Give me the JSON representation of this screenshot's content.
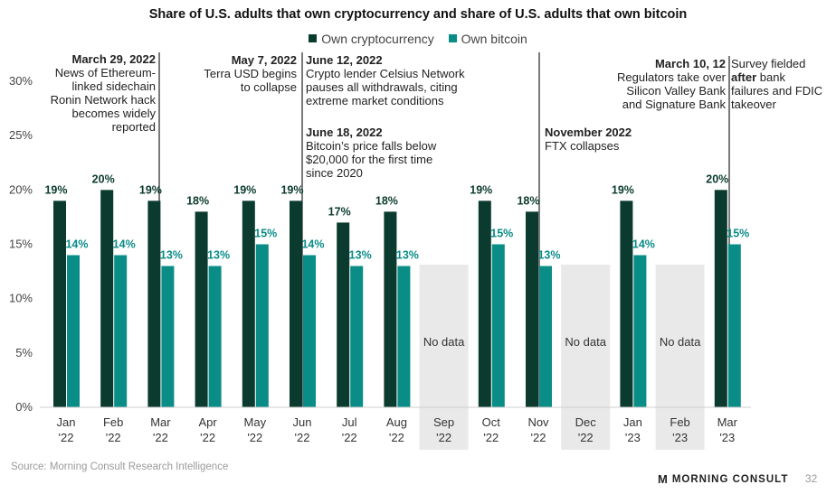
{
  "chart_data": {
    "type": "bar",
    "title": "Share of U.S. adults that own cryptocurrency and share of U.S. adults that own bitcoin",
    "categories": [
      [
        "Jan",
        "'22"
      ],
      [
        "Feb",
        "'22"
      ],
      [
        "Mar",
        "'22"
      ],
      [
        "Apr",
        "'22"
      ],
      [
        "May",
        "'22"
      ],
      [
        "Jun",
        "'22"
      ],
      [
        "Jul",
        "'22"
      ],
      [
        "Aug",
        "'22"
      ],
      [
        "Sep",
        "'22"
      ],
      [
        "Oct",
        "'22"
      ],
      [
        "Nov",
        "'22"
      ],
      [
        "Dec",
        "'22"
      ],
      [
        "Jan",
        "'23"
      ],
      [
        "Feb",
        "'23"
      ],
      [
        "Mar",
        "'23"
      ]
    ],
    "series": [
      {
        "name": "Own cryptocurrency",
        "color": "#0b3b2e",
        "values": [
          19,
          20,
          19,
          18,
          19,
          19,
          17,
          18,
          null,
          19,
          18,
          null,
          19,
          null,
          20
        ],
        "labels": [
          "19%",
          "20%",
          "19%",
          "18%",
          "19%",
          "19%",
          "17%",
          "18%",
          "",
          "19%",
          "18%",
          "",
          "19%",
          "",
          "20%"
        ]
      },
      {
        "name": "Own bitcoin",
        "color": "#0a8c87",
        "values": [
          14,
          14,
          13,
          13,
          15,
          14,
          13,
          13,
          null,
          15,
          13,
          null,
          14,
          null,
          15
        ],
        "labels": [
          "14%",
          "14%",
          "13%",
          "13%",
          "15%",
          "14%",
          "13%",
          "13%",
          "",
          "15%",
          "13%",
          "",
          "14%",
          "",
          "15%"
        ]
      }
    ],
    "no_data_label": "No data",
    "no_data_categories": [
      8,
      11,
      13
    ],
    "ylim": [
      0,
      30
    ],
    "yticks": [
      0,
      5,
      10,
      15,
      20,
      25,
      30
    ],
    "ytick_labels": [
      "0%",
      "5%",
      "10%",
      "15%",
      "20%",
      "25%",
      "30%"
    ],
    "legend_position": "top-center",
    "grid": false
  },
  "annotations": [
    {
      "key": "mar22",
      "date": "March 29, 2022",
      "lines": [
        "News of Ethereum-",
        "linked sidechain",
        "Ronin Network hack",
        "becomes widely",
        "reported"
      ]
    },
    {
      "key": "may22",
      "date": "May 7, 2022",
      "lines": [
        "Terra USD begins",
        "to collapse"
      ]
    },
    {
      "key": "jun12",
      "date": "June 12, 2022",
      "lines": [
        "Crypto lender Celsius Network",
        "pauses all withdrawals, citing",
        "extreme market conditions"
      ]
    },
    {
      "key": "jun18",
      "date": "June 18, 2022",
      "lines": [
        "Bitcoin’s price falls below",
        "$20,000 for the first time",
        "since 2020"
      ]
    },
    {
      "key": "nov22",
      "date": "November 2022",
      "lines": [
        "FTX collapses"
      ]
    },
    {
      "key": "mar10",
      "date": "March 10, 12",
      "lines": [
        "Regulators take over",
        "Silicon Valley Bank",
        "and Signature Bank"
      ]
    },
    {
      "key": "survey",
      "line1": "Survey fielded",
      "after": "after",
      "line2_rest": " bank",
      "line3": "failures and FDIC",
      "line4": "takeover"
    }
  ],
  "source": "Source: Morning Consult Research Intelligence",
  "brand": "MORNING CONSULT",
  "brand_icon": "M",
  "page_number": "32"
}
